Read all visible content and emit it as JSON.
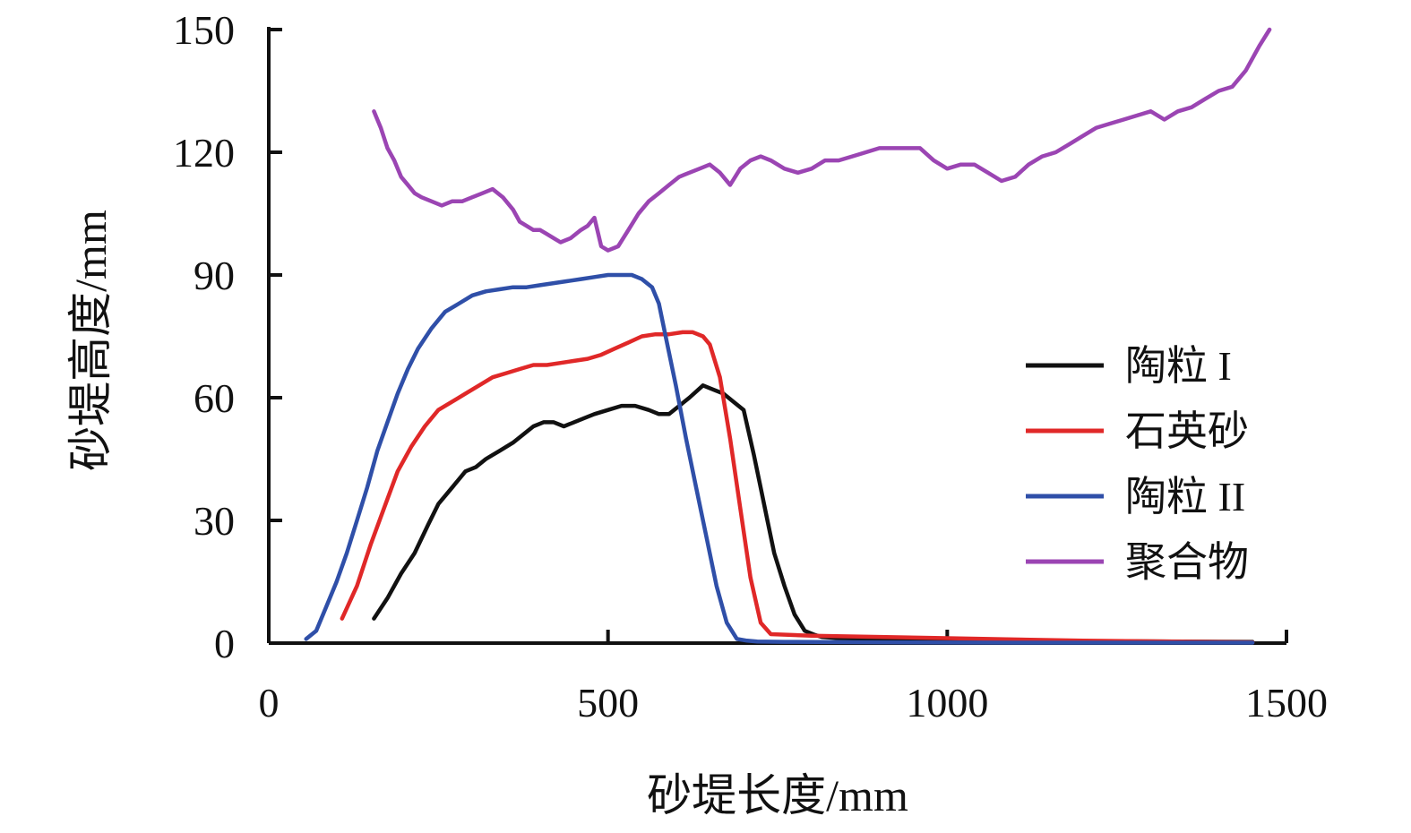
{
  "chart_data": {
    "type": "line",
    "xlabel": "砂堤长度/mm",
    "ylabel": "砂堤高度/mm",
    "xlim": [
      0,
      1500
    ],
    "ylim": [
      0,
      150
    ],
    "xticks": [
      "0",
      "500",
      "1000",
      "1500"
    ],
    "yticks": [
      "0",
      "30",
      "60",
      "90",
      "120",
      "150"
    ],
    "grid": false,
    "legend_position": "right",
    "series": [
      {
        "name": "陶粒 I",
        "color": "#111111",
        "x": [
          155,
          175,
          195,
          215,
          235,
          250,
          270,
          290,
          305,
          320,
          340,
          360,
          375,
          390,
          405,
          420,
          435,
          450,
          465,
          480,
          500,
          520,
          540,
          560,
          575,
          590,
          605,
          620,
          640,
          655,
          670,
          685,
          700,
          715,
          725,
          735,
          745,
          760,
          775,
          790,
          805,
          815,
          840,
          1000,
          1200,
          1450
        ],
        "y": [
          6,
          11,
          17,
          22,
          29,
          34,
          38,
          42,
          43,
          45,
          47,
          49,
          51,
          53,
          54,
          54,
          53,
          54,
          55,
          56,
          57,
          58,
          58,
          57,
          56,
          56,
          58,
          60,
          63,
          62,
          61,
          59,
          57,
          46,
          38,
          30,
          22,
          14,
          7,
          3,
          2,
          1.5,
          1.2,
          0.8,
          0.5,
          0.3
        ]
      },
      {
        "name": "石英砂",
        "color": "#e02828",
        "x": [
          108,
          130,
          150,
          170,
          190,
          210,
          230,
          250,
          270,
          290,
          310,
          330,
          350,
          370,
          390,
          410,
          430,
          450,
          470,
          490,
          510,
          530,
          550,
          570,
          590,
          610,
          625,
          640,
          650,
          665,
          680,
          695,
          710,
          725,
          740,
          800,
          1000,
          1200,
          1450
        ],
        "y": [
          6,
          14,
          24,
          33,
          42,
          48,
          53,
          57,
          59,
          61,
          63,
          65,
          66,
          67,
          68,
          68,
          68.5,
          69,
          69.5,
          70.5,
          72,
          73.5,
          75,
          75.5,
          75.5,
          76,
          76,
          75,
          73,
          65,
          50,
          33,
          16,
          5,
          2.2,
          1.8,
          1.2,
          0.6,
          0.2
        ]
      },
      {
        "name": "陶粒 II",
        "color": "#2f4fa8",
        "x": [
          55,
          70,
          85,
          100,
          115,
          130,
          145,
          160,
          175,
          190,
          205,
          220,
          240,
          260,
          280,
          300,
          320,
          340,
          360,
          380,
          400,
          420,
          440,
          460,
          480,
          500,
          520,
          535,
          550,
          565,
          575,
          585,
          600,
          615,
          630,
          645,
          660,
          675,
          690,
          705,
          720,
          760,
          900,
          1100,
          1300,
          1450
        ],
        "y": [
          1,
          3,
          9,
          15,
          22,
          30,
          38,
          47,
          54,
          61,
          67,
          72,
          77,
          81,
          83,
          85,
          86,
          86.5,
          87,
          87,
          87.5,
          88,
          88.5,
          89,
          89.5,
          90,
          90,
          90,
          89,
          87,
          83,
          75,
          63,
          50,
          38,
          26,
          14,
          5,
          1,
          0.6,
          0.4,
          0.3,
          0.2,
          0.1,
          0.1,
          0.1
        ]
      },
      {
        "name": "聚合物",
        "color": "#9b45b3",
        "x": [
          155,
          165,
          175,
          185,
          195,
          205,
          215,
          225,
          240,
          255,
          270,
          285,
          300,
          315,
          330,
          345,
          360,
          370,
          380,
          390,
          400,
          410,
          420,
          430,
          445,
          460,
          470,
          480,
          490,
          500,
          515,
          530,
          545,
          560,
          575,
          590,
          605,
          620,
          635,
          650,
          665,
          680,
          695,
          710,
          725,
          740,
          760,
          780,
          800,
          820,
          840,
          860,
          880,
          900,
          920,
          940,
          960,
          980,
          1000,
          1020,
          1040,
          1060,
          1080,
          1100,
          1120,
          1140,
          1160,
          1180,
          1200,
          1220,
          1240,
          1260,
          1280,
          1300,
          1320,
          1340,
          1360,
          1380,
          1400,
          1420,
          1440,
          1460,
          1475
        ],
        "y": [
          130,
          126,
          121,
          118,
          114,
          112,
          110,
          109,
          108,
          107,
          108,
          108,
          109,
          110,
          111,
          109,
          106,
          103,
          102,
          101,
          101,
          100,
          99,
          98,
          99,
          101,
          102,
          104,
          97,
          96,
          97,
          101,
          105,
          108,
          110,
          112,
          114,
          115,
          116,
          117,
          115,
          112,
          116,
          118,
          119,
          118,
          116,
          115,
          116,
          118,
          118,
          119,
          120,
          121,
          121,
          121,
          121,
          118,
          116,
          117,
          117,
          115,
          113,
          114,
          117,
          119,
          120,
          122,
          124,
          126,
          127,
          128,
          129,
          130,
          128,
          130,
          131,
          133,
          135,
          136,
          140,
          146,
          150
        ]
      }
    ]
  }
}
